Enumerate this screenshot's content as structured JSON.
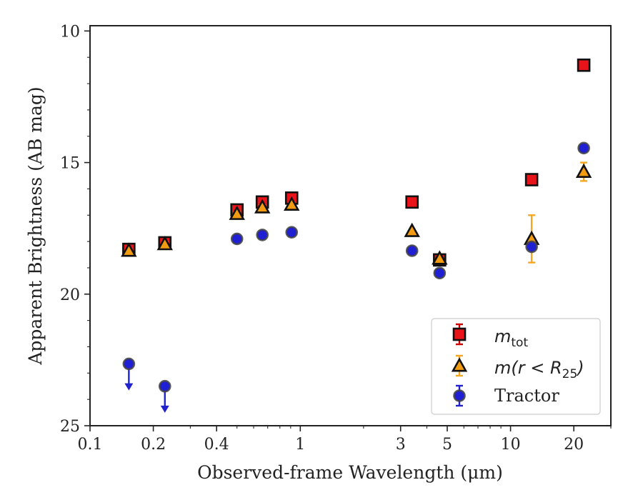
{
  "chart_data": {
    "type": "scatter",
    "xlabel": "Observed-frame Wavelength (μm)",
    "ylabel": "Apparent Brightness (AB mag)",
    "xscale": "log",
    "xlim": [
      0.1,
      30
    ],
    "ylim": [
      25,
      9.8
    ],
    "y_inverted": true,
    "grid": false,
    "legend_position": "bottom-right",
    "x_ticks": [
      {
        "value": 0.1,
        "label": "0.1"
      },
      {
        "value": 0.2,
        "label": "0.2"
      },
      {
        "value": 0.4,
        "label": "0.4"
      },
      {
        "value": 1,
        "label": "1"
      },
      {
        "value": 3,
        "label": "3"
      },
      {
        "value": 5,
        "label": "5"
      },
      {
        "value": 10,
        "label": "10"
      },
      {
        "value": 20,
        "label": "20"
      }
    ],
    "y_ticks": [
      {
        "value": 10,
        "label": "10"
      },
      {
        "value": 15,
        "label": "15"
      },
      {
        "value": 20,
        "label": "20"
      },
      {
        "value": 25,
        "label": "25"
      }
    ],
    "series": [
      {
        "name": "m_tot",
        "legend_main": "m",
        "legend_sub": "tot",
        "marker": "square",
        "color": "#e8141a",
        "error_color": "#cc0000",
        "points": [
          {
            "x": 0.153,
            "y": 18.3,
            "err": 0.1
          },
          {
            "x": 0.227,
            "y": 18.05,
            "err": 0.08
          },
          {
            "x": 0.5,
            "y": 16.8,
            "err": 0.1
          },
          {
            "x": 0.66,
            "y": 16.5,
            "err": 0.08
          },
          {
            "x": 0.91,
            "y": 16.35,
            "err": 0.08
          },
          {
            "x": 3.4,
            "y": 16.5,
            "err": 0.05
          },
          {
            "x": 4.6,
            "y": 18.7,
            "err": 0.05
          },
          {
            "x": 12.6,
            "y": 15.65,
            "err": 0.05
          },
          {
            "x": 22.3,
            "y": 11.3,
            "err": 0.05
          }
        ]
      },
      {
        "name": "m(r < R_25)",
        "legend_main": "m(r < R",
        "legend_sub": "25",
        "legend_close": ")",
        "marker": "triangle",
        "color": "#f39c12",
        "error_color": "#f5a623",
        "points": [
          {
            "x": 0.153,
            "y": 18.35,
            "err": 0.08
          },
          {
            "x": 0.227,
            "y": 18.1,
            "err": 0.08
          },
          {
            "x": 0.5,
            "y": 16.95,
            "err": 0.08
          },
          {
            "x": 0.66,
            "y": 16.7,
            "err": 0.08
          },
          {
            "x": 0.91,
            "y": 16.6,
            "err": 0.08
          },
          {
            "x": 3.4,
            "y": 17.6,
            "err": 0.05
          },
          {
            "x": 4.6,
            "y": 18.65,
            "err": 0.05
          },
          {
            "x": 12.6,
            "y": 17.9,
            "err": 0.9
          },
          {
            "x": 22.3,
            "y": 15.35,
            "err": 0.35
          }
        ]
      },
      {
        "name": "Tractor",
        "legend_main": "Tractor",
        "marker": "circle",
        "color": "#1f1fd6",
        "error_color": "#2222cc",
        "points": [
          {
            "x": 0.153,
            "y": 22.65,
            "upper_limit": true
          },
          {
            "x": 0.227,
            "y": 23.5,
            "upper_limit": true
          },
          {
            "x": 0.5,
            "y": 17.9,
            "err": 0.05
          },
          {
            "x": 0.66,
            "y": 17.75,
            "err": 0.05
          },
          {
            "x": 0.91,
            "y": 17.65,
            "err": 0.05
          },
          {
            "x": 3.4,
            "y": 18.35,
            "err": 0.05
          },
          {
            "x": 4.6,
            "y": 19.2,
            "err": 0.05
          },
          {
            "x": 12.6,
            "y": 18.2,
            "err": 0.1
          },
          {
            "x": 22.3,
            "y": 14.45,
            "err": 0.05
          }
        ]
      }
    ]
  }
}
